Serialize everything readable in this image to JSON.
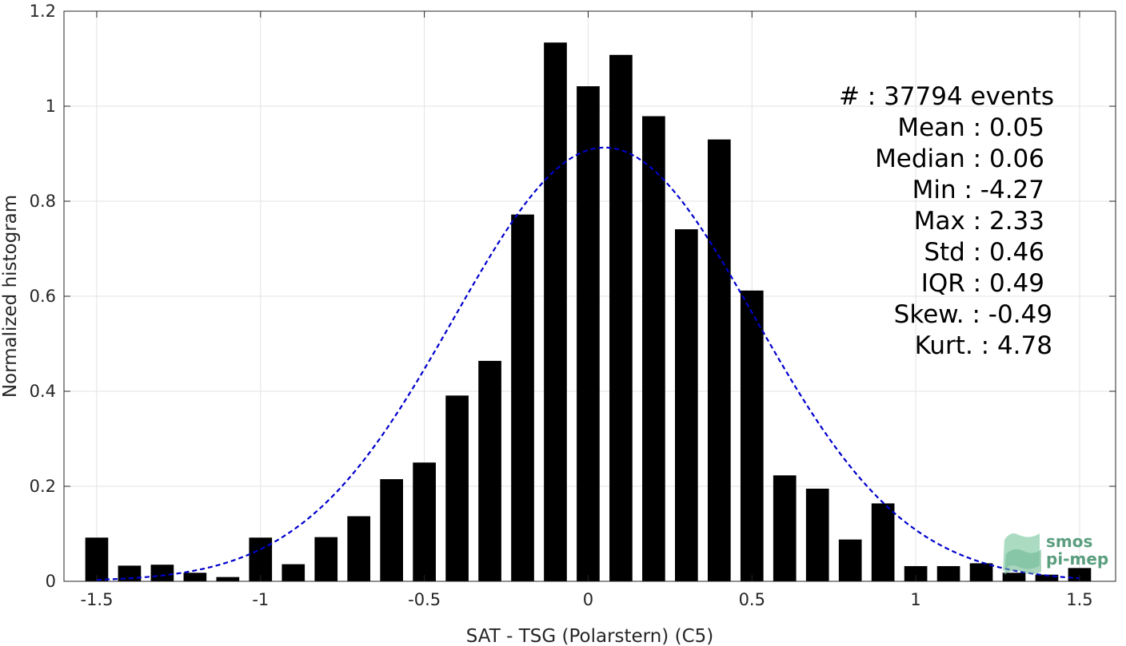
{
  "chart_data": {
    "type": "bar",
    "xlabel": "SAT - TSG (Polarstern) (C5)",
    "ylabel": "Normalized histogram",
    "xlim": [
      -1.6,
      1.61
    ],
    "ylim": [
      0,
      1.2
    ],
    "xticks": [
      -1.5,
      -1,
      -0.5,
      0,
      0.5,
      1,
      1.5
    ],
    "xtick_labels": [
      "-1.5",
      "-1",
      "-0.5",
      "0",
      "0.5",
      "1",
      "1.5"
    ],
    "yticks": [
      0,
      0.2,
      0.4,
      0.6,
      0.8,
      1,
      1.2
    ],
    "ytick_labels": [
      "0",
      "0.2",
      "0.4",
      "0.6",
      "0.8",
      "1",
      "1.2"
    ],
    "grid": true,
    "bar_width": 0.07,
    "bar_color": "#000000",
    "x": [
      -1.5,
      -1.4,
      -1.3,
      -1.2,
      -1.1,
      -1.0,
      -0.9,
      -0.8,
      -0.7,
      -0.6,
      -0.5,
      -0.4,
      -0.3,
      -0.2,
      -0.1,
      0.0,
      0.1,
      0.2,
      0.3,
      0.4,
      0.5,
      0.6,
      0.7,
      0.8,
      0.9,
      1.0,
      1.1,
      1.2,
      1.3,
      1.4,
      1.5
    ],
    "values": [
      0.092,
      0.033,
      0.035,
      0.018,
      0.009,
      0.092,
      0.036,
      0.093,
      0.137,
      0.215,
      0.25,
      0.391,
      0.464,
      0.772,
      1.134,
      1.042,
      1.108,
      0.979,
      0.741,
      0.93,
      0.612,
      0.223,
      0.195,
      0.088,
      0.164,
      0.032,
      0.032,
      0.038,
      0.018,
      0.014,
      0.028
    ],
    "fit_curve": {
      "type": "gaussian",
      "mean": 0.05,
      "std": 0.46,
      "peak": 0.913,
      "color": "#0000cc",
      "style": "dashed",
      "x_range": [
        -1.5,
        1.5
      ]
    },
    "annotations": [
      "#  : 37794 events",
      "Mean : 0.05",
      "Median : 0.06",
      "Min : -4.27",
      "Max : 2.33",
      "Std : 0.46",
      "IQR : 0.49",
      "Skew. : -0.49",
      "Kurt. : 4.78"
    ]
  },
  "logo": {
    "line1": "smos",
    "line2": "pi-mep",
    "color": "#5a9e7e"
  }
}
